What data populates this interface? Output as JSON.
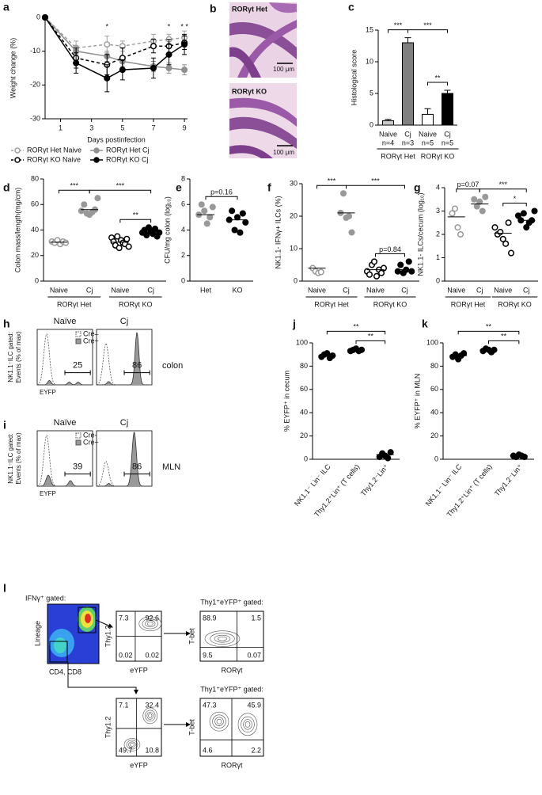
{
  "chart_data": [
    {
      "panel": "a",
      "type": "line",
      "ylabel": "Weight change (%)",
      "xlabel": "Days postinfection",
      "x": [
        0,
        2,
        4,
        5,
        7,
        8,
        9
      ],
      "xlim": [
        0,
        9.2
      ],
      "xticks": [
        1,
        3,
        5,
        7,
        9
      ],
      "ylim": [
        -30,
        0
      ],
      "yticks": [
        0,
        -10,
        -20,
        -30
      ],
      "series": [
        {
          "name": "RORγt Het Naive",
          "color": "#a0a0a0",
          "dashed": true,
          "filled": false,
          "values": [
            0,
            -9,
            -8,
            -8.5,
            -7,
            -6.5,
            -6
          ],
          "errors": [
            0,
            2,
            2.5,
            1.5,
            2,
            1.5,
            2
          ]
        },
        {
          "name": "RORγt Het Cj",
          "color": "#909090",
          "dashed": false,
          "filled": true,
          "values": [
            0,
            -10,
            -11.5,
            -13,
            -14.5,
            -15,
            -15.5
          ],
          "errors": [
            0,
            1.5,
            1.5,
            1.5,
            1.5,
            1.5,
            1.5
          ]
        },
        {
          "name": "RORγt KO Naive",
          "color": "#000000",
          "dashed": true,
          "filled": false,
          "values": [
            0,
            -12,
            -14,
            -12,
            -8.5,
            -8.5,
            -7.5
          ],
          "errors": [
            0,
            3,
            3,
            3,
            2,
            2,
            2
          ]
        },
        {
          "name": "RORγt KO Cj",
          "color": "#000000",
          "dashed": false,
          "filled": true,
          "values": [
            0,
            -13.5,
            -18,
            -15.5,
            -15,
            -11,
            -8
          ],
          "errors": [
            0,
            3,
            4,
            3,
            3,
            3,
            3
          ]
        }
      ],
      "annotations": [
        {
          "text": "*",
          "x": 4
        },
        {
          "text": "*",
          "x": 8
        },
        {
          "text": "* *",
          "x": 9
        }
      ]
    },
    {
      "panel": "c",
      "type": "bar",
      "ylabel": "Histological score",
      "categories": [
        "Naive",
        "Cj",
        "Naive",
        "Cj"
      ],
      "n_labels": [
        "n=4",
        "n=3",
        "n=5",
        "n=5"
      ],
      "values": [
        0.7,
        13,
        1.7,
        5
      ],
      "errors": [
        0.2,
        0.8,
        0.9,
        0.5
      ],
      "colors": [
        "#c8c8c8",
        "#808080",
        "#ffffff",
        "#000000"
      ],
      "ylim": [
        0,
        15
      ],
      "yticks": [
        0,
        5,
        10,
        15
      ],
      "groups": [
        {
          "name": "RORγt Het",
          "span": [
            0,
            1
          ]
        },
        {
          "name": "RORγt KO",
          "span": [
            2,
            3
          ]
        }
      ],
      "brackets": [
        {
          "from": 0,
          "to": 1,
          "label": "***"
        },
        {
          "from": 1,
          "to": 3,
          "label": "***"
        },
        {
          "from": 2,
          "to": 3,
          "label": "**"
        }
      ]
    },
    {
      "panel": "d",
      "type": "dot",
      "ylabel": "Colon mass/length(mg/cm)",
      "categories": [
        "Naive",
        "Cj",
        "Naive",
        "Cj"
      ],
      "points": [
        [
          31,
          30,
          32,
          29,
          31,
          30
        ],
        [
          55,
          60,
          53,
          52,
          54,
          56,
          65
        ],
        [
          34,
          31,
          28,
          35,
          26,
          32,
          30,
          29,
          33,
          27
        ],
        [
          38,
          40,
          36,
          42,
          39,
          37,
          41,
          35,
          38
        ]
      ],
      "means": [
        30.5,
        56,
        30.5,
        38.5
      ],
      "colors": [
        "#999999",
        "#999999",
        "#000000",
        "#000000"
      ],
      "filled": [
        false,
        true,
        false,
        true
      ],
      "ylim": [
        0,
        80
      ],
      "yticks": [
        0,
        20,
        40,
        60,
        80
      ],
      "groups": [
        {
          "name": "RORγt Het",
          "span": [
            0,
            1
          ]
        },
        {
          "name": "RORγt KO",
          "span": [
            2,
            3
          ]
        }
      ],
      "brackets": [
        {
          "from": 0,
          "to": 1,
          "label": "***"
        },
        {
          "from": 1,
          "to": 3,
          "label": "***"
        },
        {
          "from": 2,
          "to": 3,
          "label": "**"
        }
      ]
    },
    {
      "panel": "e",
      "type": "dot",
      "ylabel": "CFU/mg colon (log₁₀)",
      "categories": [
        "Het",
        "KO"
      ],
      "points": [
        [
          5.2,
          6.0,
          5.5,
          4.5,
          5.0,
          5.8
        ],
        [
          4.8,
          5.5,
          4.0,
          5.0,
          3.8,
          5.3,
          4.6
        ]
      ],
      "means": [
        5.2,
        4.8
      ],
      "colors": [
        "#999999",
        "#000000"
      ],
      "filled": [
        true,
        true
      ],
      "ylim": [
        0,
        8
      ],
      "yticks": [
        0,
        2,
        4,
        6,
        8
      ],
      "brackets": [
        {
          "from": 0,
          "to": 1,
          "label": "p=0.16"
        }
      ]
    },
    {
      "panel": "f",
      "type": "dot",
      "ylabel": "NK1.1- IFNγ+ ILCs (%)",
      "categories": [
        "Naive",
        "Cj",
        "Naive",
        "Cj"
      ],
      "points": [
        [
          4,
          3,
          2.5,
          2.8
        ],
        [
          21,
          27,
          19.5,
          20,
          15
        ],
        [
          3,
          2,
          5,
          6,
          1.5,
          3.5,
          2.5,
          4
        ],
        [
          3,
          5,
          2.5,
          3.5,
          6,
          3
        ]
      ],
      "means": [
        4,
        21,
        3.5,
        3.5
      ],
      "colors": [
        "#999999",
        "#999999",
        "#000000",
        "#000000"
      ],
      "filled": [
        false,
        true,
        false,
        true
      ],
      "ylim": [
        0,
        30
      ],
      "yticks": [
        0,
        10,
        20,
        30
      ],
      "groups": [
        {
          "name": "RORγt Het",
          "span": [
            0,
            1
          ]
        },
        {
          "name": "RORγt KO",
          "span": [
            2,
            3
          ]
        }
      ],
      "brackets": [
        {
          "from": 0,
          "to": 1,
          "label": "***"
        },
        {
          "from": 1,
          "to": 3,
          "label": "***"
        },
        {
          "from": 2,
          "to": 3,
          "label": "p=0.84"
        }
      ]
    },
    {
      "panel": "g",
      "type": "dot",
      "ylabel": "NK1.1- ILCs/cecum (log₁₀)",
      "categories": [
        "Naive",
        "Cj",
        "Naive",
        "Cj"
      ],
      "points": [
        [
          2.9,
          3.1,
          2.3,
          2.0
        ],
        [
          3.5,
          3.2,
          3.4,
          3.0,
          3.6
        ],
        [
          2.3,
          2.0,
          2.1,
          1.8,
          1.6,
          2.5,
          1.2
        ],
        [
          2.8,
          2.6,
          2.9,
          2.3,
          2.5,
          2.6,
          3.0
        ]
      ],
      "means": [
        2.75,
        3.3,
        2.05,
        2.6
      ],
      "colors": [
        "#999999",
        "#999999",
        "#000000",
        "#000000"
      ],
      "filled": [
        false,
        true,
        false,
        true
      ],
      "ylim": [
        0,
        4
      ],
      "yticks": [
        0,
        1,
        2,
        3,
        4
      ],
      "groups": [
        {
          "name": "RORγt Het",
          "span": [
            0,
            1
          ]
        },
        {
          "name": "RORγt KO",
          "span": [
            2,
            3
          ]
        }
      ],
      "brackets": [
        {
          "from": 0,
          "to": 1,
          "label": "p=0.07"
        },
        {
          "from": 1,
          "to": 3,
          "label": "***"
        },
        {
          "from": 2,
          "to": 3,
          "label": "*"
        }
      ]
    },
    {
      "panel": "j",
      "type": "dot",
      "ylabel": "% EYFP⁺ in cecum",
      "categories": [
        "NK1.1⁻ Lin⁻ ILC",
        "Thy1.2⁺Lin⁺ (T cells)",
        "Thy1.2⁻Lin⁺"
      ],
      "points": [
        [
          88,
          90,
          91,
          87,
          89
        ],
        [
          93,
          94,
          95,
          93,
          94
        ],
        [
          2,
          5,
          3,
          1,
          6
        ]
      ],
      "means": [
        89,
        94,
        4
      ],
      "colors": [
        "#000000",
        "#000000",
        "#000000"
      ],
      "filled": [
        true,
        true,
        true
      ],
      "ylim": [
        0,
        100
      ],
      "yticks": [
        0,
        20,
        40,
        60,
        80,
        100
      ],
      "brackets": [
        {
          "from": 0,
          "to": 2,
          "label": "**"
        },
        {
          "from": 1,
          "to": 2,
          "label": "**"
        }
      ]
    },
    {
      "panel": "k",
      "type": "dot",
      "ylabel": "% EYFP⁺ in MLN",
      "categories": [
        "NK1.1⁻ Lin⁻ ILC",
        "Thy1.2⁺Lin⁺ (T cells)",
        "Thy1.2⁻Lin⁺"
      ],
      "points": [
        [
          88,
          90,
          86,
          89,
          91
        ],
        [
          93,
          95,
          94,
          92,
          94
        ],
        [
          3,
          2,
          4,
          3,
          2
        ]
      ],
      "means": [
        89,
        94,
        3
      ],
      "colors": [
        "#000000",
        "#000000",
        "#000000"
      ],
      "filled": [
        true,
        true,
        true
      ],
      "ylim": [
        0,
        100
      ],
      "yticks": [
        0,
        20,
        40,
        60,
        80,
        100
      ],
      "brackets": [
        {
          "from": 0,
          "to": 2,
          "label": "**"
        },
        {
          "from": 1,
          "to": 2,
          "label": "**"
        }
      ]
    }
  ],
  "panel_b": {
    "label": "b",
    "images": [
      {
        "title": "RORγt Het",
        "scale": "100 μm"
      },
      {
        "title": "RORγt KO",
        "scale": "100 μm"
      }
    ]
  },
  "panel_h": {
    "label": "h",
    "ylabel": [
      "NK1.1⁻ILC gated:",
      "Events (% of max)"
    ],
    "xlabel": "EYFP",
    "conditions": [
      {
        "title": "Naïve",
        "gate": 25
      },
      {
        "title": "Cj",
        "gate": 86
      }
    ],
    "legend": [
      "Cre–",
      "Cre+"
    ],
    "tissue": "colon"
  },
  "panel_i": {
    "label": "i",
    "ylabel": [
      "NK1.1⁻ILC gated:",
      "Events (% of max)"
    ],
    "xlabel": "EYFP",
    "conditions": [
      {
        "title": "Naïve",
        "gate": 39
      },
      {
        "title": "Cj",
        "gate": 86
      }
    ],
    "legend": [
      "Cre-",
      "Cre+"
    ],
    "tissue": "MLN"
  },
  "panel_l": {
    "label": "l",
    "title": "IFNγ⁺ gated:",
    "ylabel": "Lineage",
    "gate_label": "CD4, CD8",
    "plots": [
      {
        "ylabel": "Thy1.2",
        "xlabel": "eYFP",
        "quadrants": [
          7.3,
          92.6,
          0.02,
          0.02
        ]
      },
      {
        "title": "Thy1⁺eYFP⁺ gated:",
        "ylabel": "T-bet",
        "xlabel": "RORγt",
        "quadrants": [
          88.9,
          1.5,
          9.5,
          0.07
        ]
      },
      {
        "ylabel": "Thy1.2",
        "xlabel": "eYFP",
        "quadrants": [
          7.1,
          32.4,
          49.7,
          10.8
        ]
      },
      {
        "title": "Thy1⁺eYFP⁺ gated:",
        "ylabel": "T-bet",
        "xlabel": "RORγt",
        "quadrants": [
          47.3,
          45.9,
          4.6,
          2.2
        ]
      }
    ]
  }
}
